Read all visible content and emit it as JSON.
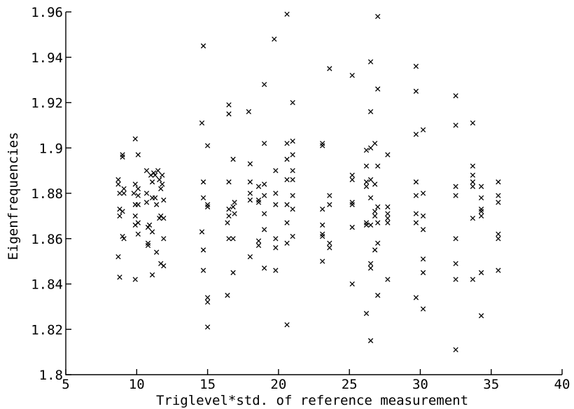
{
  "chart_data": {
    "type": "scatter",
    "title": "",
    "xlabel": "Triglevel*std. of reference measurement",
    "ylabel": "Eigenfrequencies",
    "xlim": [
      5,
      40
    ],
    "ylim": [
      1.8,
      1.96
    ],
    "xticks": [
      "5",
      "10",
      "15",
      "20",
      "25",
      "30",
      "35",
      "40"
    ],
    "yticks": [
      "1.8",
      "1.82",
      "1.84",
      "1.86",
      "1.88",
      "1.9",
      "1.92",
      "1.94",
      "1.96"
    ],
    "marker": "x",
    "grid": false,
    "points": [
      [
        8.7,
        1.886
      ],
      [
        8.7,
        1.884
      ],
      [
        8.8,
        1.88
      ],
      [
        8.8,
        1.873
      ],
      [
        8.8,
        1.87
      ],
      [
        8.7,
        1.852
      ],
      [
        8.8,
        1.843
      ],
      [
        9.0,
        1.897
      ],
      [
        9.0,
        1.896
      ],
      [
        9.1,
        1.882
      ],
      [
        9.1,
        1.88
      ],
      [
        9.0,
        1.872
      ],
      [
        9.0,
        1.861
      ],
      [
        9.1,
        1.86
      ],
      [
        9.9,
        1.904
      ],
      [
        9.9,
        1.884
      ],
      [
        9.8,
        1.88
      ],
      [
        9.9,
        1.875
      ],
      [
        9.9,
        1.87
      ],
      [
        9.9,
        1.866
      ],
      [
        9.9,
        1.842
      ],
      [
        10.1,
        1.897
      ],
      [
        10.1,
        1.882
      ],
      [
        10.1,
        1.879
      ],
      [
        10.1,
        1.875
      ],
      [
        10.1,
        1.867
      ],
      [
        10.1,
        1.862
      ],
      [
        10.7,
        1.89
      ],
      [
        10.7,
        1.88
      ],
      [
        10.7,
        1.876
      ],
      [
        10.8,
        1.858
      ],
      [
        10.8,
        1.857
      ],
      [
        10.8,
        1.865
      ],
      [
        10.9,
        1.866
      ],
      [
        11.0,
        1.888
      ],
      [
        11.1,
        1.885
      ],
      [
        11.1,
        1.878
      ],
      [
        11.1,
        1.863
      ],
      [
        11.1,
        1.844
      ],
      [
        11.2,
        1.889
      ],
      [
        11.3,
        1.888
      ],
      [
        11.3,
        1.878
      ],
      [
        11.4,
        1.875
      ],
      [
        11.4,
        1.854
      ],
      [
        11.5,
        1.89
      ],
      [
        11.6,
        1.886
      ],
      [
        11.6,
        1.869
      ],
      [
        11.7,
        1.87
      ],
      [
        11.7,
        1.882
      ],
      [
        11.7,
        1.849
      ],
      [
        11.8,
        1.888
      ],
      [
        11.8,
        1.884
      ],
      [
        11.9,
        1.86
      ],
      [
        11.9,
        1.877
      ],
      [
        11.9,
        1.848
      ],
      [
        11.9,
        1.869
      ],
      [
        14.7,
        1.945
      ],
      [
        14.6,
        1.911
      ],
      [
        14.7,
        1.885
      ],
      [
        14.7,
        1.878
      ],
      [
        14.6,
        1.863
      ],
      [
        14.7,
        1.855
      ],
      [
        14.7,
        1.846
      ],
      [
        15.0,
        1.901
      ],
      [
        15.0,
        1.875
      ],
      [
        15.0,
        1.874
      ],
      [
        15.0,
        1.834
      ],
      [
        15.0,
        1.832
      ],
      [
        15.0,
        1.821
      ],
      [
        16.5,
        1.919
      ],
      [
        16.5,
        1.915
      ],
      [
        16.5,
        1.885
      ],
      [
        16.5,
        1.873
      ],
      [
        16.5,
        1.87
      ],
      [
        16.4,
        1.867
      ],
      [
        16.5,
        1.86
      ],
      [
        16.4,
        1.835
      ],
      [
        16.8,
        1.895
      ],
      [
        16.8,
        1.874
      ],
      [
        16.8,
        1.86
      ],
      [
        16.8,
        1.845
      ],
      [
        16.9,
        1.876
      ],
      [
        16.9,
        1.871
      ],
      [
        17.9,
        1.916
      ],
      [
        18.0,
        1.893
      ],
      [
        18.0,
        1.885
      ],
      [
        18.0,
        1.88
      ],
      [
        18.0,
        1.877
      ],
      [
        18.0,
        1.852
      ],
      [
        18.6,
        1.883
      ],
      [
        18.6,
        1.877
      ],
      [
        18.6,
        1.876
      ],
      [
        18.6,
        1.859
      ],
      [
        18.6,
        1.857
      ],
      [
        19.0,
        1.928
      ],
      [
        19.0,
        1.902
      ],
      [
        19.0,
        1.884
      ],
      [
        19.0,
        1.879
      ],
      [
        19.0,
        1.871
      ],
      [
        19.0,
        1.864
      ],
      [
        19.0,
        1.847
      ],
      [
        19.7,
        1.948
      ],
      [
        19.8,
        1.89
      ],
      [
        19.8,
        1.88
      ],
      [
        19.8,
        1.875
      ],
      [
        19.8,
        1.86
      ],
      [
        19.8,
        1.856
      ],
      [
        19.8,
        1.846
      ],
      [
        20.6,
        1.959
      ],
      [
        20.6,
        1.902
      ],
      [
        20.6,
        1.895
      ],
      [
        20.6,
        1.886
      ],
      [
        20.6,
        1.875
      ],
      [
        20.6,
        1.867
      ],
      [
        20.6,
        1.858
      ],
      [
        20.6,
        1.822
      ],
      [
        21.0,
        1.92
      ],
      [
        21.0,
        1.903
      ],
      [
        21.0,
        1.897
      ],
      [
        21.0,
        1.89
      ],
      [
        21.0,
        1.886
      ],
      [
        21.0,
        1.879
      ],
      [
        21.0,
        1.873
      ],
      [
        21.0,
        1.861
      ],
      [
        23.1,
        1.902
      ],
      [
        23.1,
        1.901
      ],
      [
        23.1,
        1.873
      ],
      [
        23.1,
        1.866
      ],
      [
        23.1,
        1.862
      ],
      [
        23.1,
        1.861
      ],
      [
        23.1,
        1.85
      ],
      [
        23.6,
        1.935
      ],
      [
        23.6,
        1.879
      ],
      [
        23.6,
        1.875
      ],
      [
        23.6,
        1.858
      ],
      [
        23.6,
        1.856
      ],
      [
        25.2,
        1.932
      ],
      [
        25.2,
        1.888
      ],
      [
        25.2,
        1.886
      ],
      [
        25.2,
        1.876
      ],
      [
        25.2,
        1.875
      ],
      [
        25.2,
        1.865
      ],
      [
        25.2,
        1.84
      ],
      [
        26.2,
        1.899
      ],
      [
        26.2,
        1.892
      ],
      [
        26.2,
        1.885
      ],
      [
        26.2,
        1.883
      ],
      [
        26.2,
        1.867
      ],
      [
        26.2,
        1.866
      ],
      [
        26.2,
        1.827
      ],
      [
        26.5,
        1.938
      ],
      [
        26.5,
        1.916
      ],
      [
        26.5,
        1.9
      ],
      [
        26.5,
        1.886
      ],
      [
        26.5,
        1.878
      ],
      [
        26.5,
        1.866
      ],
      [
        26.5,
        1.849
      ],
      [
        26.5,
        1.847
      ],
      [
        26.5,
        1.815
      ],
      [
        26.8,
        1.902
      ],
      [
        26.8,
        1.884
      ],
      [
        26.8,
        1.872
      ],
      [
        26.8,
        1.87
      ],
      [
        26.8,
        1.855
      ],
      [
        27.0,
        1.958
      ],
      [
        27.0,
        1.926
      ],
      [
        27.0,
        1.892
      ],
      [
        27.0,
        1.874
      ],
      [
        27.0,
        1.867
      ],
      [
        27.0,
        1.858
      ],
      [
        27.0,
        1.835
      ],
      [
        27.7,
        1.897
      ],
      [
        27.7,
        1.874
      ],
      [
        27.7,
        1.871
      ],
      [
        27.7,
        1.869
      ],
      [
        27.7,
        1.867
      ],
      [
        27.7,
        1.842
      ],
      [
        29.7,
        1.936
      ],
      [
        29.7,
        1.925
      ],
      [
        29.7,
        1.906
      ],
      [
        29.7,
        1.885
      ],
      [
        29.7,
        1.879
      ],
      [
        29.7,
        1.871
      ],
      [
        29.7,
        1.867
      ],
      [
        29.7,
        1.834
      ],
      [
        30.2,
        1.908
      ],
      [
        30.2,
        1.88
      ],
      [
        30.2,
        1.87
      ],
      [
        30.2,
        1.864
      ],
      [
        30.2,
        1.851
      ],
      [
        30.2,
        1.845
      ],
      [
        30.2,
        1.829
      ],
      [
        32.5,
        1.923
      ],
      [
        32.5,
        1.91
      ],
      [
        32.5,
        1.883
      ],
      [
        32.5,
        1.879
      ],
      [
        32.5,
        1.86
      ],
      [
        32.5,
        1.849
      ],
      [
        32.5,
        1.842
      ],
      [
        32.5,
        1.811
      ],
      [
        33.7,
        1.911
      ],
      [
        33.7,
        1.892
      ],
      [
        33.7,
        1.888
      ],
      [
        33.7,
        1.885
      ],
      [
        33.7,
        1.883
      ],
      [
        33.7,
        1.869
      ],
      [
        33.7,
        1.842
      ],
      [
        34.3,
        1.883
      ],
      [
        34.3,
        1.878
      ],
      [
        34.3,
        1.873
      ],
      [
        34.3,
        1.872
      ],
      [
        34.3,
        1.87
      ],
      [
        34.3,
        1.845
      ],
      [
        34.3,
        1.826
      ],
      [
        35.5,
        1.885
      ],
      [
        35.5,
        1.879
      ],
      [
        35.5,
        1.876
      ],
      [
        35.5,
        1.862
      ],
      [
        35.5,
        1.86
      ],
      [
        35.5,
        1.846
      ]
    ]
  }
}
